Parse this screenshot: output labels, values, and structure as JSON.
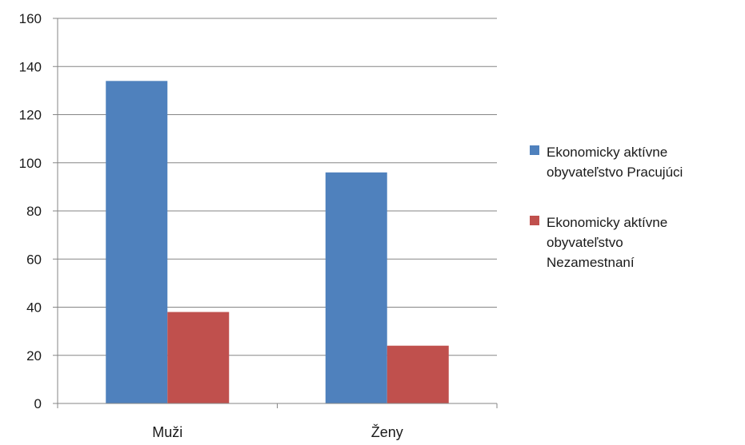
{
  "chart_data": {
    "type": "bar",
    "title": "",
    "xlabel": "",
    "ylabel": "",
    "categories": [
      "Muži",
      "Ženy"
    ],
    "series": [
      {
        "name": "Ekonomicky aktívne obyvateľstvo Pracujúci",
        "name_lines": [
          "Ekonomicky aktívne",
          "obyvateľstvo Pracujúci"
        ],
        "color": "#4F81BD",
        "values": [
          134,
          96
        ]
      },
      {
        "name": "Ekonomicky aktívne obyvateľstvo Nezamestnaní",
        "name_lines": [
          "Ekonomicky aktívne",
          "obyvateľstvo",
          "Nezamestnaní"
        ],
        "color": "#C0504D",
        "values": [
          38,
          24
        ]
      }
    ],
    "ylim": [
      0,
      160
    ],
    "yticks": [
      0,
      20,
      40,
      60,
      80,
      100,
      120,
      140,
      160
    ],
    "grid": true,
    "legend_position": "right"
  }
}
